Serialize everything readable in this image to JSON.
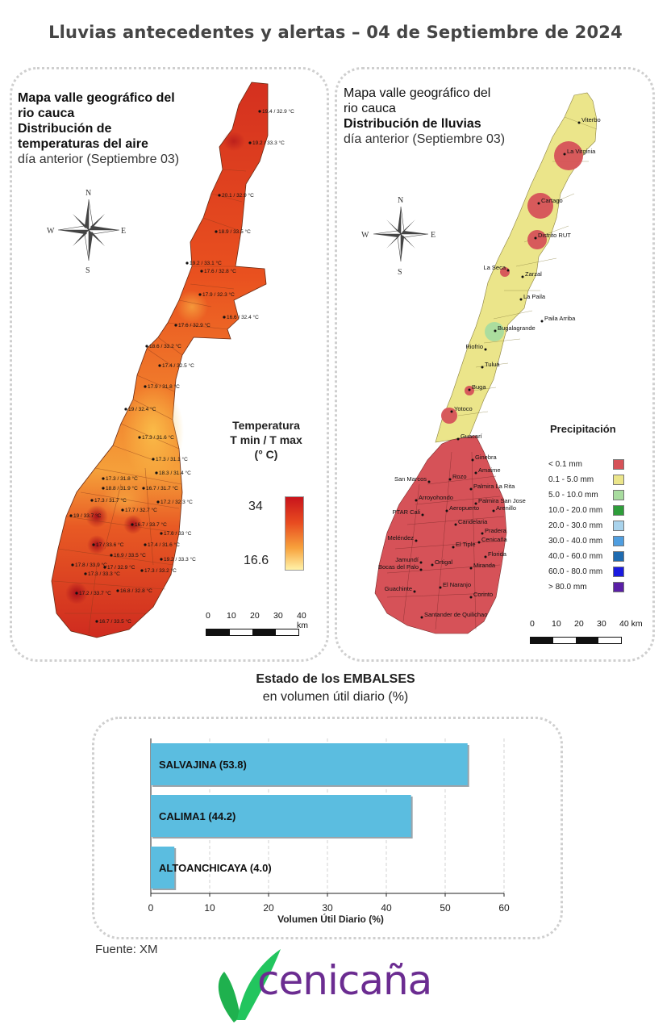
{
  "title": "Lluvias antecedentes y alertas – 04 de Septiembre de 2024",
  "temperature_panel": {
    "title_line1": "Mapa valle geográfico del",
    "title_line2": "rio cauca",
    "title_line3": "Distribución de",
    "title_line4": "temperaturas del aire",
    "subtitle": "día anterior (Septiembre 03)",
    "legend_title_1": "Temperatura",
    "legend_title_2": "T min / T max",
    "legend_title_3": "(° C)",
    "legend_max": "34",
    "legend_min": "16.6",
    "station_labels": [
      "19.4 / 32.9 °C",
      "19.2 / 33.3 °C",
      "20.1 / 32.9 °C",
      "18.9 / 33.5 °C",
      "19.2 / 33.1 °C",
      "17.6 / 32.8 °C",
      "17.9 / 32.3 °C",
      "16.6 / 32.4 °C",
      "17.6 / 32.9 °C",
      "18.6 / 33.2 °C",
      "17.4 / 32.5 °C",
      "17.9 / 31.8 °C",
      "19 / 32.4 °C",
      "17.3 / 31.6 °C",
      "17.3 / 31.1 °C",
      "18.3 / 31.4 °C",
      "17.3 / 31.8 °C",
      "18.8 / 31.9 °C",
      "16.7 / 31.7 °C",
      "17.3 / 31.7 °C",
      "17.2 / 32.3 °C",
      "17.7 / 32.7 °C",
      "19 / 33.7 °C",
      "16.7 / 33.7 °C",
      "17.6 / 33 °C",
      "17 / 33.6 °C",
      "17.4 / 31.6 °C",
      "16.9 / 33.5 °C",
      "19.2 / 33.3 °C",
      "17.8 / 33.9 °C",
      "17.3 / 33.3 °C",
      "17 / 32.9 °C",
      "17.3 / 33.2 °C",
      "17.2 / 33.7 °C",
      "16.8 / 32.8 °C",
      "16.7 / 33.5 °C"
    ]
  },
  "rain_panel": {
    "title_line1": "Mapa valle geográfico del",
    "title_line2": "rio cauca",
    "title_line3": "Distribución de lluvias",
    "subtitle": "día anterior (Septiembre 03)",
    "legend_title": "Precipitación",
    "legend": [
      {
        "label": "< 0.1 mm",
        "color": "#d65258"
      },
      {
        "label": "0.1 - 5.0 mm",
        "color": "#ebe58a"
      },
      {
        "label": "5.0 - 10.0 mm",
        "color": "#a8dc9f"
      },
      {
        "label": "10.0 - 20.0 mm",
        "color": "#2e9d3a"
      },
      {
        "label": "20.0 - 30.0 mm",
        "color": "#a9d3ec"
      },
      {
        "label": "30.0 - 40.0 mm",
        "color": "#4f9ee0"
      },
      {
        "label": "40.0 - 60.0 mm",
        "color": "#1f6bb0"
      },
      {
        "label": "60.0 - 80.0 mm",
        "color": "#1a1ae0"
      },
      {
        "label": "> 80.0 mm",
        "color": "#5a1fa6"
      }
    ],
    "stations": [
      "Viterbo",
      "La Virginia",
      "Cartago",
      "Distrito RUT",
      "La Seca",
      "Zarzal",
      "La Paila",
      "Paila Arriba",
      "Bugalagrande",
      "Riofrio",
      "Tuluá",
      "Buga",
      "Yotoco",
      "Guacarí",
      "Ginebra",
      "Amaime",
      "San Marcos",
      "Rozo",
      "Palmira La Rita",
      "Arroyohondo",
      "Palmira San Jose",
      "Aeropuerto",
      "Arenillo",
      "PTAR Cali",
      "Candelaria",
      "Pradera",
      "Meléndez",
      "Cenicaña",
      "El Tiple",
      "Florida",
      "Jamundí",
      "Bocas del Palo",
      "Ortigal",
      "Miranda",
      "El Naranjo",
      "Guachinte",
      "Corinto",
      "Santander de Quilichao"
    ]
  },
  "scale": {
    "ticks": [
      "0",
      "10",
      "20",
      "30",
      "40 km"
    ]
  },
  "embalses": {
    "title": "Estado de los EMBALSES",
    "subtitle": "en volumen útil diario (%)",
    "xlabel": "Volumen Útil Diario (%)",
    "bar_color": "#5bbde0"
  },
  "chart_data": {
    "type": "bar",
    "orientation": "horizontal",
    "categories": [
      "SALVAJINA",
      "CALIMA1",
      "ALTOANCHICAYA"
    ],
    "bar_labels": [
      "SALVAJINA (53.8)",
      "CALIMA1 (44.2)",
      "ALTOANCHICAYA (4.0)"
    ],
    "values": [
      53.8,
      44.2,
      4.0
    ],
    "xlabel": "Volumen Útil Diario (%)",
    "xlim": [
      0,
      60
    ],
    "xticks": [
      "0",
      "10",
      "20",
      "30",
      "40",
      "50",
      "60"
    ],
    "grid": "vertical dashed"
  },
  "source": "Fuente: XM",
  "logo": {
    "text": "cenicaña",
    "color": "#6b2c91",
    "accent": "#22c55e"
  }
}
